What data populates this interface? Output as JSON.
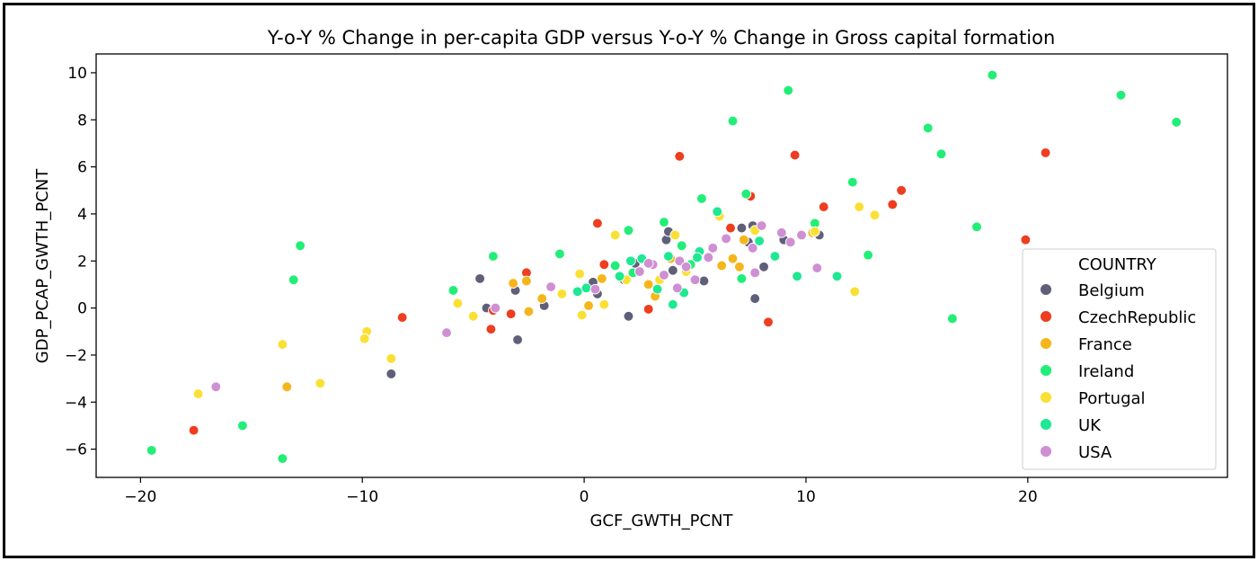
{
  "chart_data": {
    "type": "scatter",
    "title": "Y-o-Y % Change in per-capita GDP versus Y-o-Y % Change in Gross capital formation",
    "xlabel": "GCF_GWTH_PCNT",
    "ylabel": "GDP_PCAP_GWTH_PCNT",
    "xlim": [
      -22,
      29
    ],
    "ylim": [
      -7.2,
      10.8
    ],
    "xticks": [
      -20,
      -10,
      0,
      10,
      20
    ],
    "xtick_labels": [
      "−20",
      "−10",
      "0",
      "10",
      "20"
    ],
    "yticks": [
      -6,
      -4,
      -2,
      0,
      2,
      4,
      6,
      8,
      10
    ],
    "ytick_labels": [
      "−6",
      "−4",
      "−2",
      "0",
      "2",
      "4",
      "6",
      "8",
      "10"
    ],
    "grid": false,
    "legend_position": "lower-right",
    "legend_title": "COUNTRY",
    "series": [
      {
        "name": "Belgium",
        "color": "#5f5f7a",
        "points": [
          [
            -4.7,
            1.25
          ],
          [
            -3.1,
            0.75
          ],
          [
            -3.0,
            -1.35
          ],
          [
            -1.8,
            0.1
          ],
          [
            -8.7,
            -2.8
          ],
          [
            -4.4,
            0.0
          ],
          [
            0.4,
            1.1
          ],
          [
            0.6,
            0.6
          ],
          [
            1.8,
            1.2
          ],
          [
            2.0,
            -0.35
          ],
          [
            2.3,
            1.9
          ],
          [
            3.7,
            2.9
          ],
          [
            3.8,
            3.25
          ],
          [
            4.0,
            1.6
          ],
          [
            5.4,
            1.15
          ],
          [
            7.1,
            3.4
          ],
          [
            7.4,
            2.8
          ],
          [
            7.6,
            3.5
          ],
          [
            7.7,
            0.4
          ],
          [
            8.1,
            1.75
          ],
          [
            9.0,
            2.9
          ],
          [
            10.6,
            3.1
          ]
        ]
      },
      {
        "name": "CzechRepublic",
        "color": "#ee3d1f",
        "points": [
          [
            -17.6,
            -5.2
          ],
          [
            -8.2,
            -0.4
          ],
          [
            -4.2,
            -0.9
          ],
          [
            -4.1,
            -0.1
          ],
          [
            -3.3,
            -0.25
          ],
          [
            -2.6,
            1.5
          ],
          [
            0.6,
            3.6
          ],
          [
            0.9,
            1.85
          ],
          [
            2.9,
            -0.05
          ],
          [
            4.3,
            6.45
          ],
          [
            6.6,
            3.4
          ],
          [
            7.5,
            4.75
          ],
          [
            8.3,
            -0.6
          ],
          [
            9.5,
            6.5
          ],
          [
            10.8,
            4.3
          ],
          [
            13.9,
            4.4
          ],
          [
            14.3,
            5.0
          ],
          [
            19.9,
            2.9
          ],
          [
            20.8,
            6.6
          ]
        ]
      },
      {
        "name": "France",
        "color": "#f5b61b",
        "points": [
          [
            -13.4,
            -3.35
          ],
          [
            -3.2,
            1.05
          ],
          [
            -2.5,
            -0.15
          ],
          [
            -1.9,
            0.4
          ],
          [
            0.8,
            1.25
          ],
          [
            2.9,
            1.0
          ],
          [
            3.2,
            0.5
          ],
          [
            3.9,
            2.1
          ],
          [
            6.2,
            1.8
          ],
          [
            6.7,
            2.1
          ],
          [
            7.0,
            1.75
          ],
          [
            10.3,
            3.2
          ],
          [
            -2.6,
            1.15
          ],
          [
            0.2,
            0.1
          ],
          [
            7.2,
            2.9
          ]
        ]
      },
      {
        "name": "Ireland",
        "color": "#22ee77",
        "points": [
          [
            -19.5,
            -6.05
          ],
          [
            -15.4,
            -5.0
          ],
          [
            -13.6,
            -6.4
          ],
          [
            -12.8,
            2.65
          ],
          [
            -13.1,
            1.2
          ],
          [
            -5.9,
            0.75
          ],
          [
            -4.1,
            2.2
          ],
          [
            -1.1,
            2.3
          ],
          [
            1.4,
            1.8
          ],
          [
            2.0,
            3.3
          ],
          [
            2.2,
            1.5
          ],
          [
            3.6,
            3.65
          ],
          [
            4.4,
            2.65
          ],
          [
            4.8,
            1.85
          ],
          [
            5.3,
            4.65
          ],
          [
            6.7,
            7.95
          ],
          [
            7.1,
            1.25
          ],
          [
            7.3,
            4.85
          ],
          [
            9.2,
            9.25
          ],
          [
            10.4,
            3.6
          ],
          [
            12.1,
            5.35
          ],
          [
            12.8,
            2.25
          ],
          [
            15.5,
            7.65
          ],
          [
            16.1,
            6.55
          ],
          [
            16.6,
            -0.45
          ],
          [
            17.7,
            3.45
          ],
          [
            18.4,
            9.9
          ],
          [
            24.2,
            9.05
          ],
          [
            26.7,
            7.9
          ]
        ]
      },
      {
        "name": "Portugal",
        "color": "#fae034",
        "points": [
          [
            -17.4,
            -3.65
          ],
          [
            -13.6,
            -1.55
          ],
          [
            -11.9,
            -3.2
          ],
          [
            -9.8,
            -1.0
          ],
          [
            -9.9,
            -1.3
          ],
          [
            -8.7,
            -2.15
          ],
          [
            -5.7,
            0.2
          ],
          [
            -5.0,
            -0.35
          ],
          [
            -1.0,
            0.6
          ],
          [
            -0.2,
            1.45
          ],
          [
            -0.1,
            -0.3
          ],
          [
            1.4,
            3.1
          ],
          [
            1.9,
            1.2
          ],
          [
            4.1,
            3.1
          ],
          [
            4.6,
            1.55
          ],
          [
            6.1,
            3.9
          ],
          [
            7.7,
            3.3
          ],
          [
            10.4,
            3.25
          ],
          [
            12.2,
            0.7
          ],
          [
            12.4,
            4.3
          ],
          [
            13.1,
            3.95
          ],
          [
            0.9,
            0.15
          ],
          [
            3.4,
            1.2
          ]
        ]
      },
      {
        "name": "UK",
        "color": "#1ee892",
        "points": [
          [
            -0.3,
            0.7
          ],
          [
            0.1,
            0.85
          ],
          [
            1.6,
            1.35
          ],
          [
            2.1,
            2.0
          ],
          [
            2.6,
            2.1
          ],
          [
            3.3,
            0.8
          ],
          [
            3.8,
            2.2
          ],
          [
            4.0,
            0.15
          ],
          [
            4.5,
            0.65
          ],
          [
            5.2,
            2.4
          ],
          [
            6.0,
            4.1
          ],
          [
            7.9,
            2.85
          ],
          [
            8.6,
            2.2
          ],
          [
            9.6,
            1.35
          ],
          [
            11.4,
            1.35
          ],
          [
            5.1,
            2.15
          ]
        ]
      },
      {
        "name": "USA",
        "color": "#cf8fd3",
        "points": [
          [
            -16.6,
            -3.35
          ],
          [
            -6.2,
            -1.05
          ],
          [
            -4.0,
            0.0
          ],
          [
            -1.5,
            0.9
          ],
          [
            0.5,
            0.8
          ],
          [
            2.5,
            1.55
          ],
          [
            3.1,
            1.85
          ],
          [
            3.6,
            1.4
          ],
          [
            4.2,
            0.85
          ],
          [
            4.3,
            2.0
          ],
          [
            4.6,
            1.75
          ],
          [
            5.0,
            1.2
          ],
          [
            5.6,
            2.15
          ],
          [
            5.8,
            2.55
          ],
          [
            6.4,
            2.95
          ],
          [
            7.6,
            2.55
          ],
          [
            7.7,
            1.5
          ],
          [
            8.0,
            3.5
          ],
          [
            8.9,
            3.2
          ],
          [
            9.3,
            2.8
          ],
          [
            9.8,
            3.1
          ],
          [
            10.5,
            1.7
          ],
          [
            2.9,
            1.9
          ]
        ]
      }
    ]
  }
}
